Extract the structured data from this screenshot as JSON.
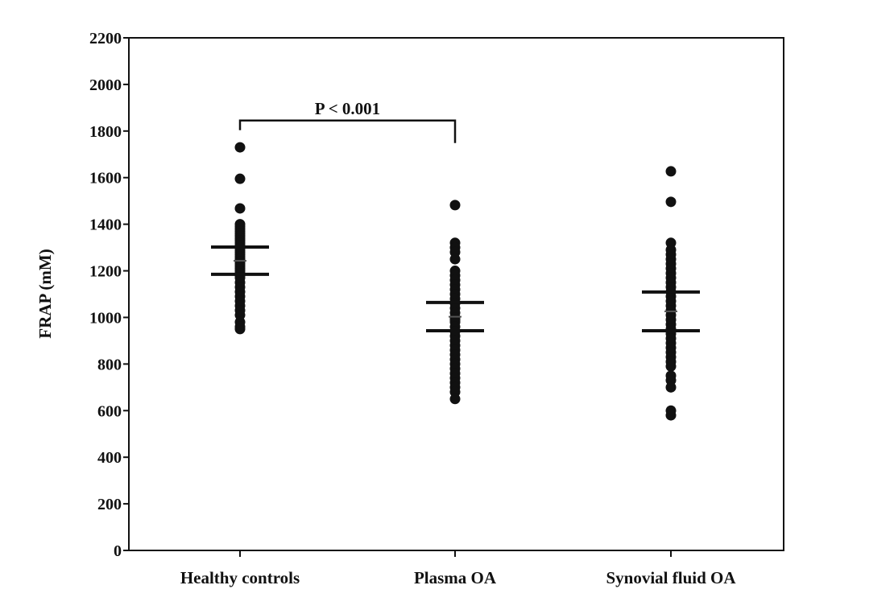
{
  "chart_data": {
    "type": "scatter",
    "title": "",
    "xlabel": "",
    "ylabel": "FRAP (mM)",
    "ylim": [
      0,
      2200
    ],
    "yticks": [
      0,
      200,
      400,
      600,
      800,
      1000,
      1200,
      1400,
      1600,
      1800,
      2000,
      2200
    ],
    "grid": false,
    "categories": [
      "Healthy controls",
      "Plasma OA",
      "Synovial fluid OA"
    ],
    "series": [
      {
        "name": "Healthy controls",
        "mean": 1243,
        "error_upper": 1302,
        "error_lower": 1185,
        "values": [
          1730,
          1595,
          1468,
          1400,
          1390,
          1380,
          1370,
          1360,
          1350,
          1340,
          1330,
          1320,
          1310,
          1300,
          1290,
          1280,
          1270,
          1260,
          1250,
          1240,
          1230,
          1220,
          1210,
          1200,
          1190,
          1180,
          1170,
          1150,
          1130,
          1110,
          1090,
          1070,
          1050,
          1030,
          1010,
          980,
          960,
          950
        ]
      },
      {
        "name": "Plasma OA",
        "mean": 1003,
        "error_upper": 1064,
        "error_lower": 943,
        "values": [
          1482,
          1320,
          1300,
          1280,
          1250,
          1200,
          1180,
          1160,
          1140,
          1120,
          1100,
          1080,
          1060,
          1040,
          1020,
          1000,
          990,
          980,
          960,
          940,
          920,
          900,
          880,
          860,
          840,
          820,
          800,
          780,
          760,
          740,
          720,
          700,
          680,
          650
        ]
      },
      {
        "name": "Synovial fluid OA",
        "mean": 1026,
        "error_upper": 1109,
        "error_lower": 943,
        "values": [
          1627,
          1496,
          1320,
          1290,
          1270,
          1250,
          1230,
          1210,
          1190,
          1170,
          1150,
          1130,
          1110,
          1090,
          1070,
          1050,
          1030,
          1010,
          990,
          970,
          950,
          930,
          910,
          890,
          870,
          850,
          830,
          810,
          790,
          750,
          730,
          700,
          600,
          580
        ]
      }
    ],
    "annotations": [
      {
        "text": "P < 0.001",
        "between": [
          "Healthy controls",
          "Plasma OA"
        ],
        "level": 1845
      }
    ]
  }
}
